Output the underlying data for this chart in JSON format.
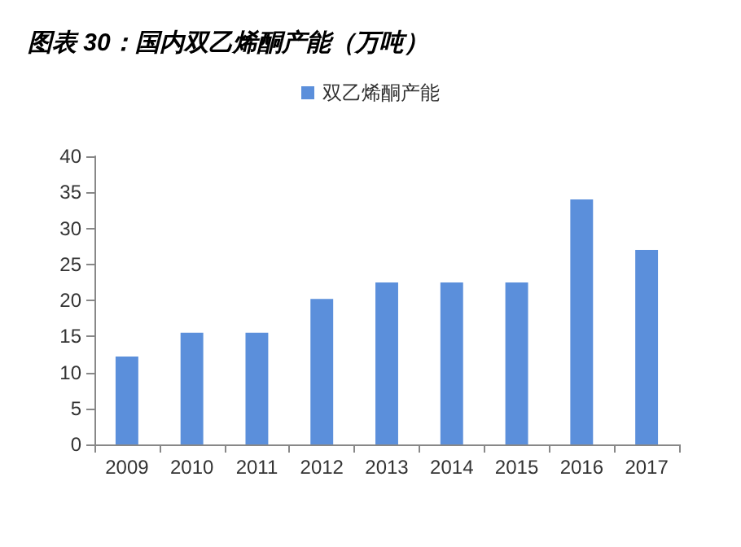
{
  "chart_data": {
    "type": "bar",
    "title": "图表 30：国内双乙烯酮产能（万吨）",
    "categories": [
      "2009",
      "2010",
      "2011",
      "2012",
      "2013",
      "2014",
      "2015",
      "2016",
      "2017"
    ],
    "series": [
      {
        "name": "双乙烯酮产能",
        "color": "#5b8fdb",
        "values": [
          12.2,
          15.5,
          15.5,
          20.2,
          22.5,
          22.5,
          22.5,
          34,
          27
        ]
      }
    ],
    "ylim": [
      0,
      40
    ],
    "yticks": [
      0,
      5,
      10,
      15,
      20,
      25,
      30,
      35,
      40
    ],
    "grid": false,
    "legend": "top"
  }
}
